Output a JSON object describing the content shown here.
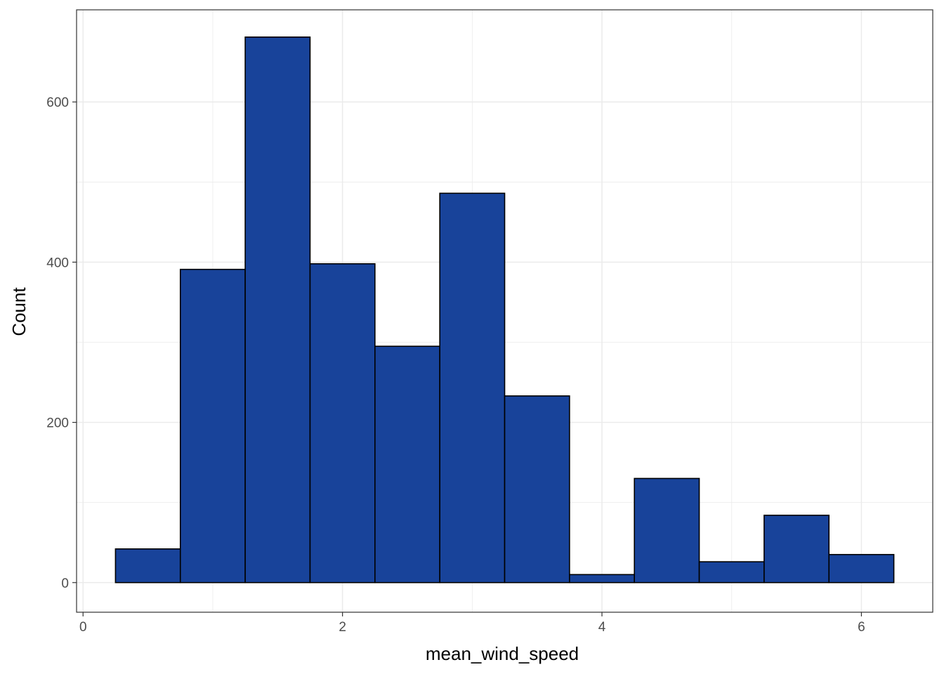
{
  "chart_data": {
    "type": "bar",
    "title": "",
    "xlabel": "mean_wind_speed",
    "ylabel": "Count",
    "bins": [
      {
        "x0": 0.25,
        "x1": 0.75,
        "count": 42
      },
      {
        "x0": 0.75,
        "x1": 1.25,
        "count": 391
      },
      {
        "x0": 1.25,
        "x1": 1.75,
        "count": 681
      },
      {
        "x0": 1.75,
        "x1": 2.25,
        "count": 398
      },
      {
        "x0": 2.25,
        "x1": 2.75,
        "count": 295
      },
      {
        "x0": 2.75,
        "x1": 3.25,
        "count": 486
      },
      {
        "x0": 3.25,
        "x1": 3.75,
        "count": 233
      },
      {
        "x0": 3.75,
        "x1": 4.25,
        "count": 10
      },
      {
        "x0": 4.25,
        "x1": 4.75,
        "count": 130
      },
      {
        "x0": 4.75,
        "x1": 5.25,
        "count": 26
      },
      {
        "x0": 5.25,
        "x1": 5.75,
        "count": 84
      },
      {
        "x0": 5.75,
        "x1": 6.25,
        "count": 35
      }
    ],
    "xlim": [
      -0.05,
      6.55
    ],
    "ylim": [
      -37,
      715
    ],
    "xticks": [
      0,
      2,
      4,
      6
    ],
    "xtick_labels": [
      "0",
      "2",
      "4",
      "6"
    ],
    "yticks": [
      0,
      200,
      400,
      600
    ],
    "ytick_labels": [
      "0",
      "200",
      "400",
      "600"
    ],
    "x_minor": [
      1,
      3,
      5
    ],
    "y_minor": [
      100,
      300,
      500
    ],
    "grid": true,
    "legend": "none",
    "bar_fill": "#18439A",
    "bar_stroke": "#000000",
    "grid_color": "#EBEBEB",
    "panel_border": "#333333"
  }
}
